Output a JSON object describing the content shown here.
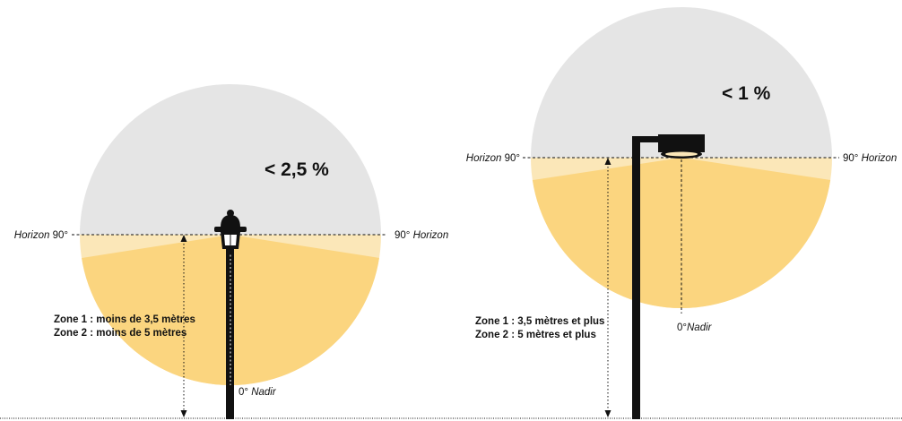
{
  "colors": {
    "upper_gray": "#e5e5e5",
    "light_band": "#fbe7b8",
    "lower_yellow": "#fbd57f",
    "pole": "#111111",
    "background": "#ffffff"
  },
  "left": {
    "percent": "< 2,5 %",
    "horizon_left_word": "Horizon",
    "horizon_left_deg": "90°",
    "horizon_right_deg": "90°",
    "horizon_right_word": "Horizon",
    "zone1": "Zone 1 : moins de 3,5 mètres",
    "zone2": "Zone 2 : moins de 5 mètres",
    "nadir_deg": "0°",
    "nadir_word": "Nadir"
  },
  "right": {
    "percent": "< 1 %",
    "horizon_left_word": "Horizon",
    "horizon_left_deg": "90°",
    "horizon_right_deg": "90°",
    "horizon_right_word": "Horizon",
    "zone1": "Zone 1 : 3,5 mètres et plus",
    "zone2": "Zone 2 : 5 mètres et plus",
    "nadir_deg": "0°",
    "nadir_word": "Nadir"
  }
}
